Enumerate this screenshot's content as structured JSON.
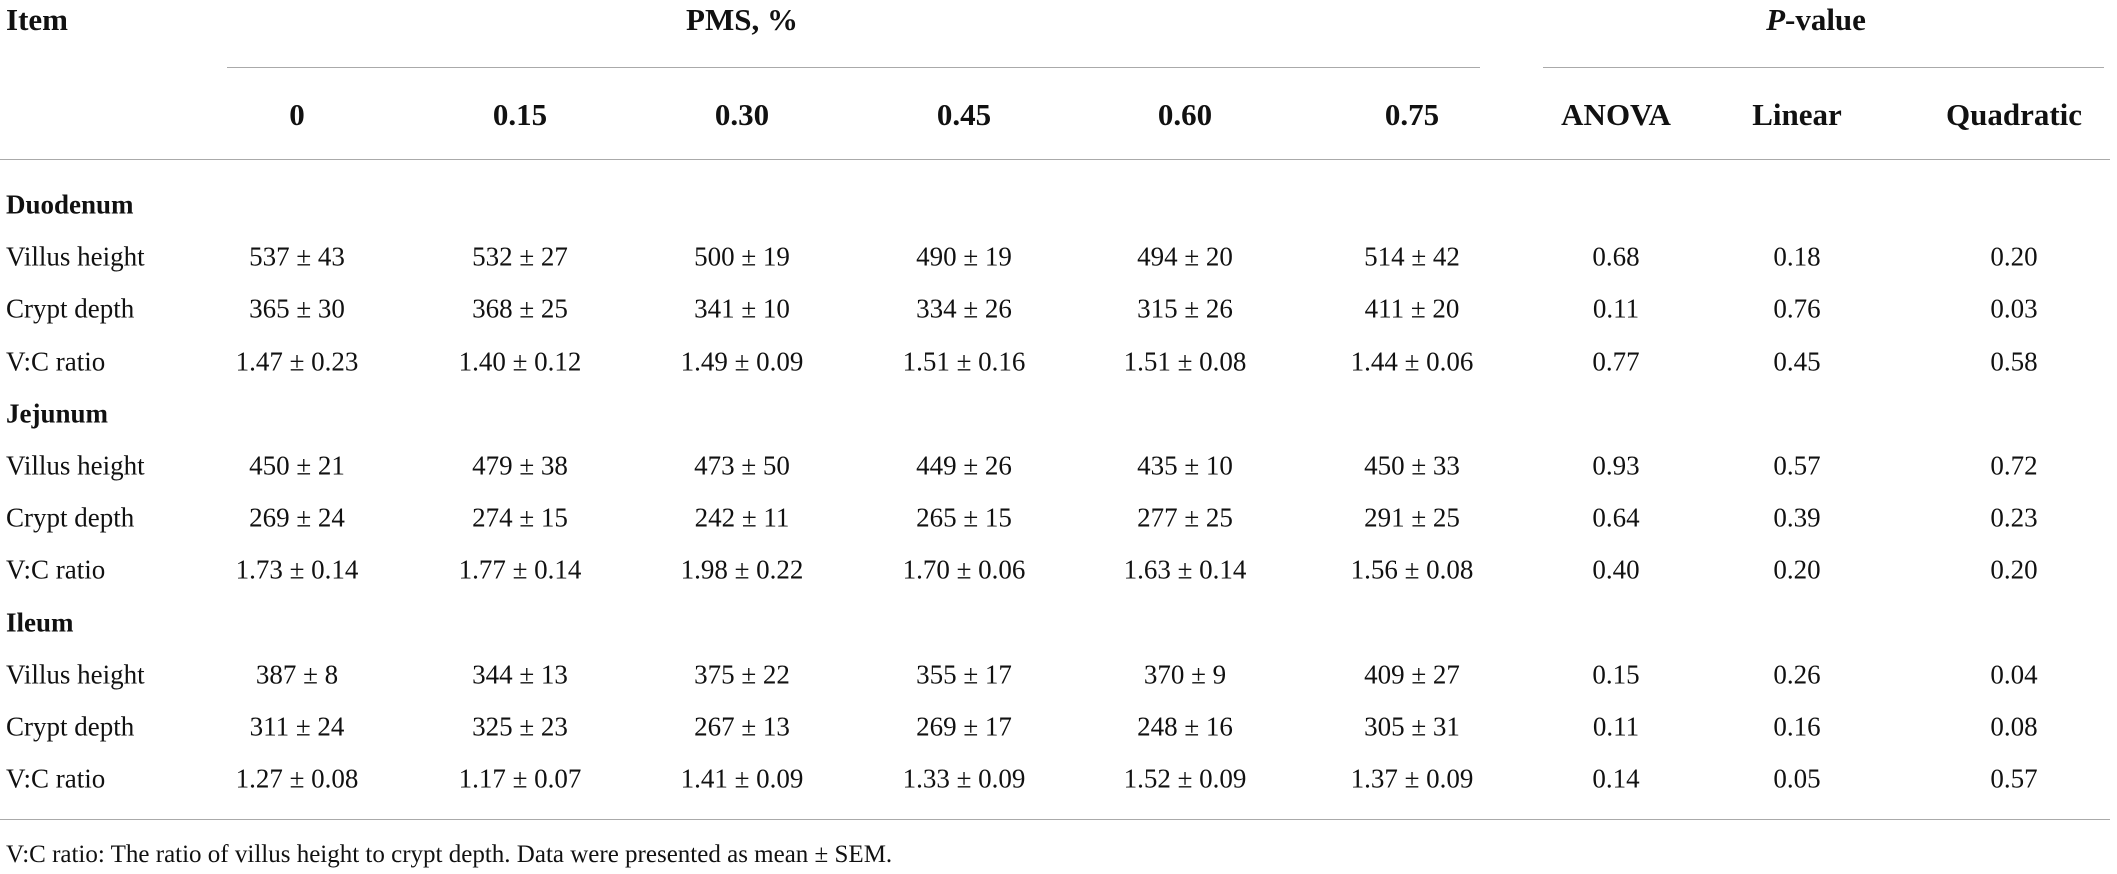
{
  "header": {
    "item": "Item",
    "pms": "PMS, %",
    "pvalue_italic": "P",
    "pvalue_rest": "-value",
    "columns": [
      "0",
      "0.15",
      "0.30",
      "0.45",
      "0.60",
      "0.75"
    ],
    "pcolumns": [
      "ANOVA",
      "Linear",
      "Quadratic"
    ]
  },
  "sections": [
    {
      "name": "Duodenum",
      "rows": [
        [
          "Villus height",
          "537 ± 43",
          "532 ± 27",
          "500 ± 19",
          "490 ± 19",
          "494 ± 20",
          "514 ± 42",
          "0.68",
          "0.18",
          "0.20"
        ],
        [
          "Crypt depth",
          "365 ± 30",
          "368 ± 25",
          "341 ± 10",
          "334 ± 26",
          "315 ± 26",
          "411 ± 20",
          "0.11",
          "0.76",
          "0.03"
        ],
        [
          "V:C ratio",
          "1.47 ± 0.23",
          "1.40 ± 0.12",
          "1.49 ± 0.09",
          "1.51 ± 0.16",
          "1.51 ± 0.08",
          "1.44 ± 0.06",
          "0.77",
          "0.45",
          "0.58"
        ]
      ]
    },
    {
      "name": "Jejunum",
      "rows": [
        [
          "Villus height",
          "450 ± 21",
          "479 ± 38",
          "473 ± 50",
          "449 ± 26",
          "435 ± 10",
          "450 ± 33",
          "0.93",
          "0.57",
          "0.72"
        ],
        [
          "Crypt depth",
          "269 ± 24",
          "274 ± 15",
          "242 ± 11",
          "265 ± 15",
          "277 ± 25",
          "291 ± 25",
          "0.64",
          "0.39",
          "0.23"
        ],
        [
          "V:C ratio",
          "1.73 ± 0.14",
          "1.77 ± 0.14",
          "1.98 ± 0.22",
          "1.70 ± 0.06",
          "1.63 ± 0.14",
          "1.56 ± 0.08",
          "0.40",
          "0.20",
          "0.20"
        ]
      ]
    },
    {
      "name": "Ileum",
      "rows": [
        [
          "Villus height",
          "387 ± 8",
          "344 ± 13",
          "375 ± 22",
          "355 ± 17",
          "370 ± 9",
          "409 ± 27",
          "0.15",
          "0.26",
          "0.04"
        ],
        [
          "Crypt depth",
          "311 ± 24",
          "325 ± 23",
          "267 ± 13",
          "269 ± 17",
          "248 ± 16",
          "305 ± 31",
          "0.11",
          "0.16",
          "0.08"
        ],
        [
          "V:C ratio",
          "1.27 ± 0.08",
          "1.17 ± 0.07",
          "1.41 ± 0.09",
          "1.33 ± 0.09",
          "1.52 ± 0.09",
          "1.37 ± 0.09",
          "0.14",
          "0.05",
          "0.57"
        ]
      ]
    }
  ],
  "footnote": "V:C ratio: The ratio of villus height to crypt depth. Data were presented as mean ± SEM."
}
